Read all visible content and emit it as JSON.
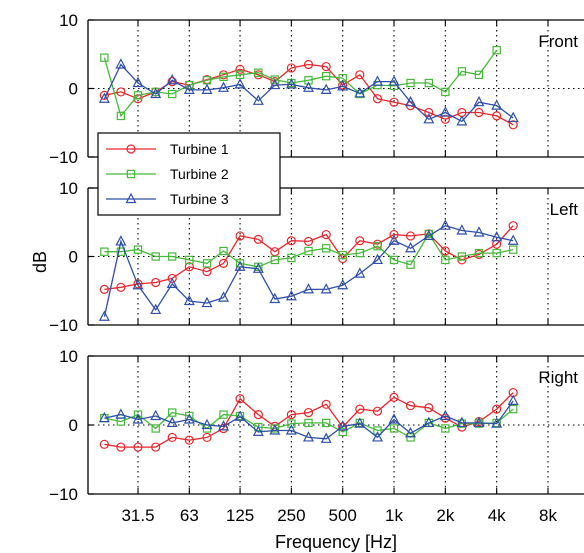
{
  "chart_data": {
    "type": "line",
    "xlabel": "Frequency [Hz]",
    "ylabel": "dB",
    "xscale": "log2",
    "x_tick_labels": [
      "31.5",
      "63",
      "125",
      "250",
      "500",
      "1k",
      "2k",
      "4k",
      "8k"
    ],
    "x_tick_values": [
      31.5,
      63,
      125,
      250,
      500,
      1000,
      2000,
      4000,
      8000
    ],
    "x": [
      20,
      25,
      31.5,
      40,
      50,
      63,
      80,
      100,
      125,
      160,
      200,
      250,
      315,
      400,
      500,
      630,
      800,
      1000,
      1250,
      1600,
      2000,
      2500,
      3150,
      4000,
      5000
    ],
    "ylim": [
      -10,
      10
    ],
    "y_tick_labels": [
      "-10",
      "0",
      "10"
    ],
    "grid": "x-dotted",
    "y_zero_line": "dotted",
    "legend": {
      "placement": "top-left of Left panel",
      "entries": [
        "Turbine 1",
        "Turbine 2",
        "Turbine 3"
      ]
    },
    "series_style": [
      {
        "color": "#e8262d",
        "marker": "circle"
      },
      {
        "color": "#46b93b",
        "marker": "square"
      },
      {
        "color": "#2f4fa8",
        "marker": "triangle"
      }
    ],
    "panels": [
      {
        "title": "Front",
        "series": [
          {
            "name": "Turbine 1",
            "values": [
              -1,
              -0.5,
              -1.5,
              -0.5,
              1,
              0.5,
              1.3,
              2,
              2.8,
              2,
              1,
              3,
              3.5,
              3.2,
              0.5,
              2,
              -1.5,
              -2,
              -2.5,
              -3.5,
              -4.5,
              -3.5,
              -3.5,
              -4,
              -5.3
            ]
          },
          {
            "name": "Turbine 2",
            "values": [
              4.5,
              -4,
              -1,
              -0.5,
              -0.8,
              0.5,
              1.2,
              1.7,
              2,
              2.3,
              1.3,
              0.8,
              1.2,
              1.8,
              1.5,
              -0.8,
              0.5,
              0.4,
              0.8,
              0.8,
              -0.5,
              2.5,
              2,
              5.6,
              null
            ]
          },
          {
            "name": "Turbine 3",
            "values": [
              -1.5,
              3.5,
              0.8,
              -0.8,
              1.2,
              -0.2,
              -0.2,
              0.1,
              0.6,
              -1.8,
              0.5,
              0.6,
              0.1,
              -0.2,
              0.3,
              -0.7,
              1,
              1,
              -2,
              -4.5,
              -3.5,
              -4.8,
              -2,
              -2.5,
              -4.3
            ]
          }
        ]
      },
      {
        "title": "Left",
        "series": [
          {
            "name": "Turbine 1",
            "values": [
              -4.8,
              -4.5,
              -4,
              -3.8,
              -3.2,
              -1.5,
              -2.2,
              -1,
              3,
              2.5,
              0.7,
              2.3,
              2.2,
              3.2,
              -0.3,
              2.3,
              1.8,
              3.2,
              3,
              3.3,
              0.8,
              -0.5,
              0.3,
              1.8,
              4.5
            ]
          },
          {
            "name": "Turbine 2",
            "values": [
              0.7,
              0.7,
              1,
              0,
              0,
              -0.5,
              -1,
              0.8,
              -1,
              -1.5,
              -0.5,
              -0.2,
              0.8,
              1.2,
              0.2,
              0.5,
              1.5,
              -0.5,
              -1.2,
              3.3,
              -0.5,
              0,
              0.5,
              0.5,
              1
            ]
          },
          {
            "name": "Turbine 3",
            "values": [
              -8.8,
              2.2,
              -4.2,
              -7.8,
              -4,
              -6.5,
              -6.8,
              -6,
              -1.5,
              -1.8,
              -6.2,
              -5.8,
              -4.8,
              -4.8,
              -4.2,
              -2.5,
              -0.5,
              2.3,
              1.2,
              3,
              4.5,
              3.8,
              3.5,
              2.8,
              2.3
            ]
          }
        ]
      },
      {
        "title": "Right",
        "series": [
          {
            "name": "Turbine 1",
            "values": [
              -2.8,
              -3.2,
              -3.2,
              -3.2,
              -1.8,
              -2.2,
              -1.8,
              -0.5,
              3.8,
              1.5,
              -0.2,
              1.5,
              1.8,
              3,
              -0.3,
              2.3,
              2,
              4,
              2.8,
              2.5,
              1,
              -0.3,
              0.5,
              2.3,
              4.7
            ]
          },
          {
            "name": "Turbine 2",
            "values": [
              1,
              0.5,
              1.5,
              -0.5,
              1.8,
              1.3,
              -0.5,
              1.5,
              1.3,
              -0.3,
              -0.5,
              0.2,
              0.3,
              0.3,
              -1,
              0.3,
              -0.8,
              -0.5,
              -1.8,
              0.3,
              -0.5,
              0.2,
              0.2,
              0.3,
              2.3
            ]
          },
          {
            "name": "Turbine 3",
            "values": [
              1,
              1.5,
              0.8,
              1.3,
              0.3,
              0.8,
              0,
              -0.2,
              1.2,
              -1,
              -0.8,
              -0.8,
              -1.8,
              -2,
              -0.2,
              0.2,
              -1.8,
              0.8,
              -1.2,
              0.3,
              1.3,
              0.3,
              0.3,
              0.2,
              3.5
            ]
          }
        ]
      }
    ]
  }
}
